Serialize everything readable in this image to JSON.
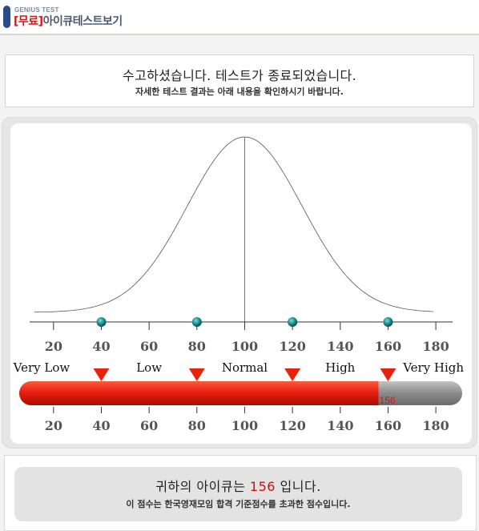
{
  "header": {
    "small_label": "GENIUS TEST",
    "free_tag": "[무료]",
    "title": "아이큐테스트보기"
  },
  "message": {
    "main": "수고하셨습니다. 테스트가 종료되었습니다.",
    "sub": "자세한 테스트 결과는 아래 내용을 확인하시기 바랍니다."
  },
  "chart_data": {
    "type": "area",
    "distribution": "normal",
    "mean": 100,
    "sd": 24,
    "xlim": [
      10,
      187
    ],
    "x_ticks": [
      20,
      40,
      60,
      80,
      100,
      120,
      140,
      160,
      180
    ],
    "markers": [
      40,
      80,
      120,
      160
    ],
    "categories": [
      {
        "label": "Very Low",
        "center": 15
      },
      {
        "label": "Low",
        "center": 60
      },
      {
        "label": "Normal",
        "center": 100
      },
      {
        "label": "High",
        "center": 140
      },
      {
        "label": "Very High",
        "center": 179
      }
    ],
    "category_boundaries": [
      40,
      80,
      120,
      160
    ],
    "score_bar": {
      "value": 156,
      "label": "156",
      "min": 10,
      "max": 187
    },
    "colors": {
      "bar_fill": "#e82010",
      "bar_empty": "#999999",
      "marker": "#1a8888",
      "triangle": "#e8220a",
      "curve": "#555555"
    }
  },
  "result": {
    "prefix": "귀하의 아이큐는 ",
    "score": "156",
    "suffix": " 입니다.",
    "sub": "이 점수는 한국영재모임 합격 기준점수를 초과한 점수입니다."
  }
}
